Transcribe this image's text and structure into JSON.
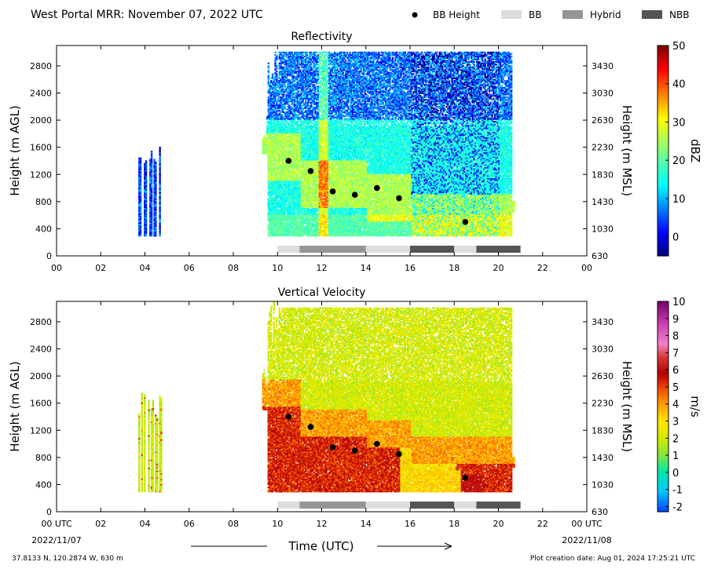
{
  "figure": {
    "title": "West Portal MRR:  November 07, 2022 UTC",
    "legend": [
      {
        "label": "BB Height",
        "color": "#000000",
        "shape": "dot"
      },
      {
        "label": "BB",
        "color": "#dddddd",
        "shape": "box"
      },
      {
        "label": "Hybrid",
        "color": "#959595",
        "shape": "box"
      },
      {
        "label": "NBB",
        "color": "#555555",
        "shape": "box"
      }
    ],
    "x_axis_label": "Time (UTC)",
    "x_tick_labels": [
      "00",
      "02",
      "04",
      "06",
      "08",
      "10",
      "12",
      "14",
      "16",
      "18",
      "20",
      "22",
      "00"
    ],
    "x_tick_labels_bottom": [
      "00 UTC",
      "02",
      "04",
      "06",
      "08",
      "10",
      "12",
      "14",
      "16",
      "18",
      "20",
      "22",
      "00 UTC"
    ],
    "date_start": "2022/11/07",
    "date_end": "2022/11/08",
    "footer_left": "37.8133 N, 120.2874 W, 630 m",
    "footer_right": "Plot creation date: Aug 01, 2024 17:25:21 UTC"
  },
  "chart_data": [
    {
      "type": "heatmap",
      "title": "Reflectivity",
      "ylabel": "Height (m AGL)",
      "ylabel_right": "Height (m MSL)",
      "xlim": [
        0,
        24
      ],
      "ylim": [
        0,
        3100
      ],
      "y_ticks": [
        0,
        400,
        800,
        1200,
        1600,
        2000,
        2400,
        2800
      ],
      "y_right_ticks": [
        630,
        1030,
        1430,
        1830,
        2230,
        2630,
        3030,
        3430
      ],
      "colorbar": {
        "label": "dBZ",
        "min": -5,
        "max": 50,
        "ticks": [
          0,
          10,
          20,
          30,
          40,
          50
        ],
        "colormap": "jet"
      },
      "bright_band_height": {
        "x": [
          10.5,
          11.5,
          12.5,
          13.5,
          14.5,
          15.5,
          18.5
        ],
        "y": [
          1400,
          1250,
          950,
          900,
          1000,
          850,
          500
        ]
      },
      "bb_classification": [
        {
          "start": 10,
          "end": 11,
          "class": "BB"
        },
        {
          "start": 11,
          "end": 14,
          "class": "Hybrid"
        },
        {
          "start": 14,
          "end": 16,
          "class": "BB"
        },
        {
          "start": 16,
          "end": 18,
          "class": "NBB"
        },
        {
          "start": 18,
          "end": 19,
          "class": "BB"
        },
        {
          "start": 19,
          "end": 21,
          "class": "NBB"
        }
      ]
    },
    {
      "type": "heatmap",
      "title": "Vertical Velocity",
      "ylabel": "Height (m AGL)",
      "ylabel_right": "Height (m MSL)",
      "xlim": [
        0,
        24
      ],
      "ylim": [
        0,
        3100
      ],
      "y_ticks": [
        0,
        400,
        800,
        1200,
        1600,
        2000,
        2400,
        2800
      ],
      "y_right_ticks": [
        630,
        1030,
        1430,
        1830,
        2230,
        2630,
        3030,
        3430
      ],
      "colorbar": {
        "label": "m/s",
        "min": -2.3,
        "max": 10,
        "ticks": [
          -2,
          -1,
          0,
          1,
          2,
          3,
          4,
          5,
          6,
          7,
          8,
          9,
          10
        ],
        "colormap": "velocity"
      },
      "bright_band_height": {
        "x": [
          10.5,
          11.5,
          12.5,
          13.5,
          14.5,
          15.5,
          18.5
        ],
        "y": [
          1400,
          1250,
          950,
          900,
          1000,
          850,
          500
        ]
      },
      "bb_classification": [
        {
          "start": 10,
          "end": 11,
          "class": "BB"
        },
        {
          "start": 11,
          "end": 14,
          "class": "Hybrid"
        },
        {
          "start": 14,
          "end": 16,
          "class": "BB"
        },
        {
          "start": 16,
          "end": 18,
          "class": "NBB"
        },
        {
          "start": 18,
          "end": 19,
          "class": "BB"
        },
        {
          "start": 19,
          "end": 21,
          "class": "NBB"
        }
      ]
    }
  ]
}
